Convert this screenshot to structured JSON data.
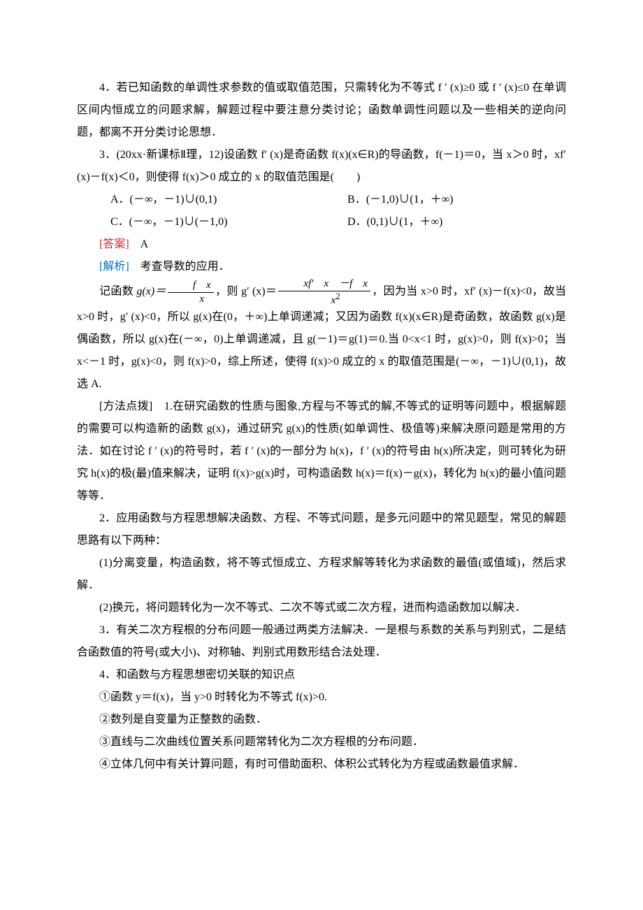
{
  "p_intro4": "4．若已知函数的单调性求参数的值或取值范围，只需转化为不等式 f ′ (x)≥0 或 f ′ (x)≤0 在单调区间内恒成立的问题求解，解题过程中要注意分类讨论；函数单调性问题以及一些相关的逆向问题，都离不开分类讨论思想．",
  "q3_stem": "3．(20xx·新课标Ⅱ理，12)设函数 f′ (x)是奇函数 f(x)(x∈R)的导函数，f(－1)＝0，当 x＞0 时，xf′ (x)－f(x)＜0，则使得 f(x)＞0 成立的 x 的取值范围是(　　)",
  "q3_A": "A．(－∞，－1)∪(0,1)",
  "q3_B": "B．(－1,0)∪(1，＋∞)",
  "q3_C": "C．(－∞，－1)∪(－1,0)",
  "q3_D": "D．(0,1)∪(1，＋∞)",
  "ans_label": "[答案]",
  "ans_val": "　A",
  "ana_label": "[解析]",
  "ana_val": "　考查导数的应用．",
  "sol_pre": "记函数 ",
  "sol_gx": "g(x)＝",
  "sol_frac1_num": "f　x",
  "sol_frac1_den": "x",
  "sol_mid1": "，则 g′ (x)＝",
  "sol_frac2_num": "xf′　x　－f　x",
  "sol_frac2_den": "x",
  "sol_sq": "2",
  "sol_post": "，因为当 x>0 时，xf′ (x)－f(x)<0，故当 x>0 时，g′ (x)<0，所以 g(x)在(0，＋∞)上单调递减；又因为函数 f(x)(x∈R)是奇函数，故函数 g(x)是偶函数，所以 g(x)在(－∞，0)上单调递减，且 g(－1)＝g(1)＝0.当 0<x<1 时，g(x)>0，则 f(x)>0；当 x<－1 时，g(x)<0，则 f(x)>0，综上所述，使得 f(x)>0 成立的 x 的取值范围是(－∞，－1)∪(0,1)，故选 A.",
  "m1": "[方法点拨]　1.在研究函数的性质与图象,方程与不等式的解,不等式的证明等问题中，根据解题的需要可以构造新的函数 g(x)，通过研究 g(x)的性质(如单调性、极值等)来解决原问题是常用的方法．如在讨论 f ′ (x)的符号时，若 f ′ (x)的一部分为 h(x)，f ′ (x)的符号由 h(x)所决定，则可转化为研究 h(x)的极(最)值来解决，证明 f(x)>g(x)时，可构造函数 h(x)＝f(x)－g(x)，转化为 h(x)的最小值问题等等．",
  "m2": "2．应用函数与方程思想解决函数、方程、不等式问题，是多元问题中的常见题型，常见的解题思路有以下两种：",
  "m2_1": "(1)分离变量，构造函数，将不等式恒成立、方程求解等转化为求函数的最值(或值域)，然后求解．",
  "m2_2": "(2)换元，将问题转化为一次不等式、二次不等式或二次方程，进而构造函数加以解决．",
  "m3": "3．有关二次方程根的分布问题一般通过两类方法解决．一是根与系数的关系与判别式，二是结合函数值的符号(或大小)、对称轴、判别式用数形结合法处理．",
  "m4": "4．和函数与方程思想密切关联的知识点",
  "m4_1": "①函数 y＝f(x)，当 y>0 时转化为不等式 f(x)>0.",
  "m4_2": "②数列是自变量为正整数的函数．",
  "m4_3": "③直线与二次曲线位置关系问题常转化为二次方程根的分布问题．",
  "m4_4": "④立体几何中有关计算问题，有时可借助面积、体积公式转化为方程或函数最值求解．"
}
